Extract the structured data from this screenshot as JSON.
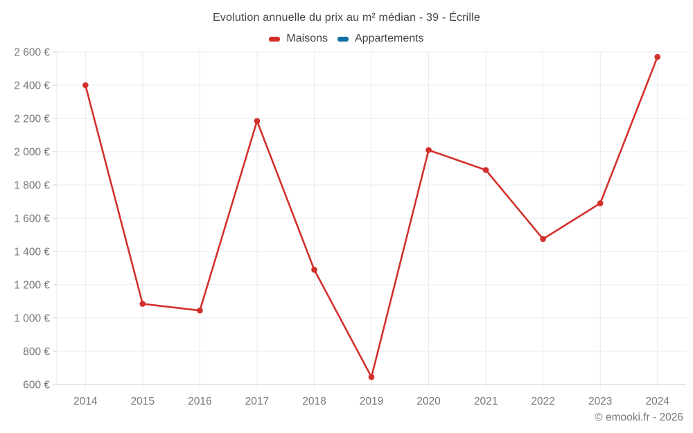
{
  "chart_data": {
    "type": "line",
    "title": "Evolution annuelle du prix au m² médian - 39 - Écrille",
    "categories": [
      "2014",
      "2015",
      "2016",
      "2017",
      "2018",
      "2019",
      "2020",
      "2021",
      "2022",
      "2023",
      "2024"
    ],
    "series": [
      {
        "name": "Maisons",
        "color": "#d3302c",
        "values": [
          2400,
          1085,
          1045,
          2185,
          1290,
          645,
          2010,
          1890,
          1475,
          1690,
          2570
        ]
      },
      {
        "name": "Appartements",
        "color": "#1170a3",
        "values": []
      }
    ],
    "ylim": [
      600,
      2600
    ],
    "ytick_step": 200,
    "y_unit": "€",
    "ytick_labels": [
      "600 €",
      "800 €",
      "1 000 €",
      "1 200 €",
      "1 400 €",
      "1 600 €",
      "1 800 €",
      "2 000 €",
      "2 200 €",
      "2 400 €",
      "2 600 €"
    ],
    "grid": true,
    "legend_position": "top",
    "colors": {
      "grid": "#e8e9ea",
      "axis_line": "#d0d2d4",
      "axis_text": "#73777b",
      "title_text": "#3f4347"
    }
  },
  "footer": {
    "text": "© emooki.fr - 2026"
  }
}
